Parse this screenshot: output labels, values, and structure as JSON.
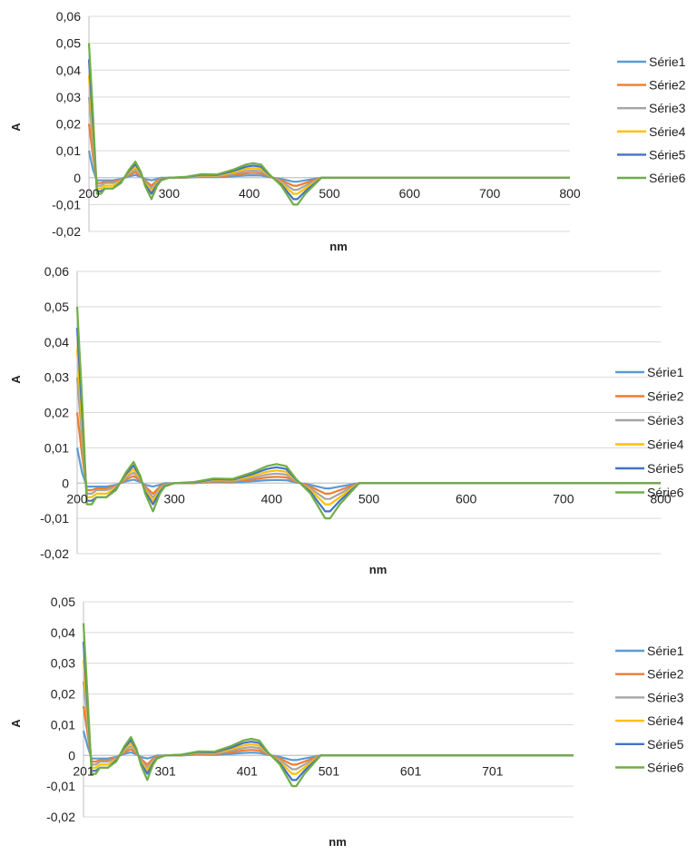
{
  "series_colors": [
    "#5b9bd5",
    "#ed7d31",
    "#a5a5a5",
    "#ffc000",
    "#4472c4",
    "#70ad47"
  ],
  "chart_data": [
    {
      "type": "line",
      "title": "",
      "xlabel": "nm",
      "ylabel": "A",
      "xlim": [
        200,
        800
      ],
      "ylim": [
        -0.02,
        0.06
      ],
      "x_ticks": [
        "200",
        "300",
        "400",
        "500",
        "600",
        "700",
        "800"
      ],
      "y_ticks": [
        "0,06",
        "0,05",
        "0,04",
        "0,03",
        "0,02",
        "0,01",
        "0",
        "-0,01",
        "-0,02"
      ],
      "y_tick_values": [
        0.06,
        0.05,
        0.04,
        0.03,
        0.02,
        0.01,
        0,
        -0.01,
        -0.02
      ],
      "grid": "horizontal",
      "legend": "right",
      "x": [
        200,
        205,
        210,
        215,
        220,
        230,
        240,
        250,
        258,
        265,
        270,
        278,
        285,
        290,
        300,
        320,
        340,
        360,
        380,
        395,
        405,
        415,
        425,
        440,
        455,
        460,
        470,
        490,
        500,
        550,
        600,
        650,
        700,
        750,
        800
      ],
      "series": [
        {
          "name": "Série1",
          "values": [
            0.01,
            0.003,
            -0.001,
            -0.001,
            -0.001,
            -0.001,
            -0.0005,
            0.0005,
            0.001,
            0.0003,
            -0.0005,
            -0.001,
            -0.0005,
            0,
            0,
            0,
            0.0003,
            0.0002,
            0.0005,
            0.0008,
            0.0009,
            0.0008,
            0.0002,
            -0.0005,
            -0.0015,
            -0.0015,
            -0.001,
            0,
            0,
            0,
            0,
            0,
            0,
            0,
            0
          ]
        },
        {
          "name": "Série2",
          "values": [
            0.02,
            0.008,
            -0.002,
            -0.002,
            -0.0015,
            -0.0015,
            -0.0008,
            0.001,
            0.002,
            0.0006,
            -0.001,
            -0.003,
            -0.001,
            -0.0003,
            0,
            0,
            0.0005,
            0.0004,
            0.001,
            0.0016,
            0.0018,
            0.0016,
            0.0004,
            -0.001,
            -0.003,
            -0.003,
            -0.002,
            0,
            0,
            0,
            0,
            0,
            0,
            0,
            0
          ]
        },
        {
          "name": "Série3",
          "values": [
            0.03,
            0.012,
            -0.003,
            -0.003,
            -0.002,
            -0.002,
            -0.001,
            0.0015,
            0.003,
            0.001,
            -0.0015,
            -0.004,
            -0.0015,
            -0.0005,
            0,
            0.0001,
            0.0007,
            0.0006,
            0.0015,
            0.0024,
            0.0027,
            0.0024,
            0.0006,
            -0.0015,
            -0.0045,
            -0.0045,
            -0.003,
            0,
            0,
            0,
            0,
            0,
            0,
            0,
            0
          ]
        },
        {
          "name": "Série4",
          "values": [
            0.038,
            0.016,
            -0.004,
            -0.004,
            -0.003,
            -0.003,
            -0.0013,
            0.002,
            0.004,
            0.0013,
            -0.002,
            -0.005,
            -0.002,
            -0.0007,
            0,
            0.0002,
            0.0009,
            0.0008,
            0.002,
            0.0032,
            0.0036,
            0.0032,
            0.0008,
            -0.002,
            -0.006,
            -0.006,
            -0.004,
            0,
            0,
            0,
            0,
            0,
            0,
            0,
            0
          ]
        },
        {
          "name": "Série5",
          "values": [
            0.044,
            0.02,
            -0.005,
            -0.005,
            -0.004,
            -0.004,
            -0.0016,
            0.0025,
            0.005,
            0.0017,
            -0.0025,
            -0.006,
            -0.0025,
            -0.0008,
            0,
            0.0002,
            0.0011,
            0.001,
            0.0025,
            0.004,
            0.0045,
            0.004,
            0.001,
            -0.0025,
            -0.008,
            -0.008,
            -0.005,
            0,
            0,
            0,
            0,
            0,
            0,
            0,
            0
          ]
        },
        {
          "name": "Série6",
          "values": [
            0.05,
            0.024,
            -0.006,
            -0.006,
            -0.004,
            -0.004,
            -0.002,
            0.003,
            0.006,
            0.002,
            -0.003,
            -0.008,
            -0.003,
            -0.001,
            0,
            0.0003,
            0.0013,
            0.0012,
            0.003,
            0.0048,
            0.0054,
            0.0048,
            0.0012,
            -0.003,
            -0.01,
            -0.01,
            -0.006,
            0,
            0,
            0,
            0,
            0,
            0,
            0,
            0
          ]
        }
      ]
    },
    {
      "type": "line",
      "title": "",
      "xlabel": "nm",
      "ylabel": "A",
      "xlim": [
        200,
        800
      ],
      "ylim": [
        -0.02,
        0.06
      ],
      "x_ticks": [
        "200",
        "300",
        "400",
        "500",
        "600",
        "700",
        "800"
      ],
      "y_ticks": [
        "0,06",
        "0,05",
        "0,04",
        "0,03",
        "0,02",
        "0,01",
        "0",
        "-0,01",
        "-0,02"
      ],
      "y_tick_values": [
        0.06,
        0.05,
        0.04,
        0.03,
        0.02,
        0.01,
        0,
        -0.01,
        -0.02
      ],
      "grid": "horizontal",
      "legend": "right",
      "x": [
        200,
        205,
        210,
        215,
        220,
        230,
        240,
        250,
        258,
        265,
        270,
        278,
        285,
        290,
        300,
        320,
        340,
        360,
        380,
        395,
        405,
        415,
        425,
        440,
        455,
        460,
        470,
        490,
        500,
        550,
        600,
        650,
        700,
        750,
        800
      ],
      "series": [
        {
          "name": "Série1",
          "values": [
            0.01,
            0.003,
            -0.001,
            -0.001,
            -0.001,
            -0.001,
            -0.0005,
            0.0005,
            0.001,
            0.0003,
            -0.0005,
            -0.001,
            -0.0005,
            0,
            0,
            0,
            0.0003,
            0.0002,
            0.0005,
            0.0008,
            0.0009,
            0.0008,
            0.0002,
            -0.0005,
            -0.0015,
            -0.0015,
            -0.001,
            0,
            0,
            0,
            0,
            0,
            0,
            0,
            0
          ]
        },
        {
          "name": "Série2",
          "values": [
            0.02,
            0.008,
            -0.002,
            -0.002,
            -0.0015,
            -0.0015,
            -0.0008,
            0.001,
            0.002,
            0.0006,
            -0.001,
            -0.003,
            -0.001,
            -0.0003,
            0,
            0,
            0.0005,
            0.0004,
            0.001,
            0.0016,
            0.0018,
            0.0016,
            0.0004,
            -0.001,
            -0.003,
            -0.003,
            -0.002,
            0,
            0,
            0,
            0,
            0,
            0,
            0,
            0
          ]
        },
        {
          "name": "Série3",
          "values": [
            0.03,
            0.012,
            -0.003,
            -0.003,
            -0.002,
            -0.002,
            -0.001,
            0.0015,
            0.003,
            0.001,
            -0.0015,
            -0.004,
            -0.0015,
            -0.0005,
            0,
            0.0001,
            0.0007,
            0.0006,
            0.0015,
            0.0024,
            0.0027,
            0.0024,
            0.0006,
            -0.0015,
            -0.0045,
            -0.0045,
            -0.003,
            0,
            0,
            0,
            0,
            0,
            0,
            0,
            0
          ]
        },
        {
          "name": "Série4",
          "values": [
            0.038,
            0.016,
            -0.004,
            -0.004,
            -0.003,
            -0.003,
            -0.0013,
            0.002,
            0.004,
            0.0013,
            -0.002,
            -0.005,
            -0.002,
            -0.0007,
            0,
            0.0002,
            0.0009,
            0.0008,
            0.002,
            0.0032,
            0.0036,
            0.0032,
            0.0008,
            -0.002,
            -0.006,
            -0.006,
            -0.004,
            0,
            0,
            0,
            0,
            0,
            0,
            0,
            0
          ]
        },
        {
          "name": "Série5",
          "values": [
            0.044,
            0.02,
            -0.005,
            -0.005,
            -0.004,
            -0.004,
            -0.0016,
            0.0025,
            0.005,
            0.0017,
            -0.0025,
            -0.006,
            -0.0025,
            -0.0008,
            0,
            0.0002,
            0.0011,
            0.001,
            0.0025,
            0.004,
            0.0045,
            0.004,
            0.001,
            -0.0025,
            -0.008,
            -0.008,
            -0.005,
            0,
            0,
            0,
            0,
            0,
            0,
            0,
            0
          ]
        },
        {
          "name": "Série6",
          "values": [
            0.05,
            0.024,
            -0.006,
            -0.006,
            -0.004,
            -0.004,
            -0.002,
            0.003,
            0.006,
            0.002,
            -0.003,
            -0.008,
            -0.003,
            -0.001,
            0,
            0.0003,
            0.0013,
            0.0012,
            0.003,
            0.0048,
            0.0054,
            0.0048,
            0.0012,
            -0.003,
            -0.01,
            -0.01,
            -0.006,
            0,
            0,
            0,
            0,
            0,
            0,
            0,
            0
          ]
        }
      ]
    },
    {
      "type": "line",
      "title": "",
      "xlabel": "nm",
      "ylabel": "A",
      "xlim": [
        201,
        800
      ],
      "ylim": [
        -0.02,
        0.05
      ],
      "x_ticks": [
        "201",
        "301",
        "401",
        "501",
        "601",
        "701"
      ],
      "y_ticks": [
        "0,05",
        "0,04",
        "0,03",
        "0,02",
        "0,01",
        "0",
        "-0,01",
        "-0,02"
      ],
      "y_tick_values": [
        0.05,
        0.04,
        0.03,
        0.02,
        0.01,
        0,
        -0.01,
        -0.02
      ],
      "grid": "horizontal",
      "legend": "right",
      "x": [
        201,
        206,
        211,
        216,
        221,
        231,
        241,
        251,
        259,
        266,
        271,
        279,
        286,
        291,
        301,
        321,
        341,
        361,
        381,
        396,
        406,
        416,
        426,
        441,
        456,
        461,
        471,
        491,
        501,
        551,
        601,
        651,
        701,
        751,
        800
      ],
      "series": [
        {
          "name": "Série1",
          "values": [
            0.008,
            0.003,
            -0.001,
            -0.001,
            -0.001,
            -0.001,
            -0.0005,
            0.0005,
            0.001,
            0.0003,
            -0.0005,
            -0.001,
            -0.0005,
            0,
            0,
            0,
            0.0003,
            0.0002,
            0.0005,
            0.0008,
            0.0009,
            0.0008,
            0.0002,
            -0.0005,
            -0.0015,
            -0.0015,
            -0.001,
            0,
            0,
            0,
            0,
            0,
            0,
            0,
            0
          ]
        },
        {
          "name": "Série2",
          "values": [
            0.016,
            0.007,
            -0.002,
            -0.002,
            -0.0015,
            -0.0015,
            -0.0008,
            0.001,
            0.002,
            0.0006,
            -0.001,
            -0.003,
            -0.001,
            -0.0003,
            0,
            0,
            0.0005,
            0.0004,
            0.001,
            0.0016,
            0.0018,
            0.0016,
            0.0004,
            -0.001,
            -0.003,
            -0.003,
            -0.002,
            0,
            0,
            0,
            0,
            0,
            0,
            0,
            0
          ]
        },
        {
          "name": "Série3",
          "values": [
            0.024,
            0.01,
            -0.003,
            -0.003,
            -0.002,
            -0.002,
            -0.001,
            0.0015,
            0.003,
            0.001,
            -0.0015,
            -0.004,
            -0.0015,
            -0.0005,
            0,
            0.0001,
            0.0007,
            0.0006,
            0.0015,
            0.0024,
            0.0027,
            0.0024,
            0.0006,
            -0.0015,
            -0.0045,
            -0.0045,
            -0.003,
            0,
            0,
            0,
            0,
            0,
            0,
            0,
            0
          ]
        },
        {
          "name": "Série4",
          "values": [
            0.031,
            0.013,
            -0.004,
            -0.004,
            -0.003,
            -0.003,
            -0.0013,
            0.002,
            0.004,
            0.0013,
            -0.002,
            -0.005,
            -0.002,
            -0.0007,
            0,
            0.0002,
            0.0009,
            0.0008,
            0.002,
            0.0032,
            0.0036,
            0.0032,
            0.0008,
            -0.002,
            -0.006,
            -0.006,
            -0.004,
            0,
            0,
            0,
            0,
            0,
            0,
            0,
            0
          ]
        },
        {
          "name": "Série5",
          "values": [
            0.037,
            0.016,
            -0.005,
            -0.005,
            -0.004,
            -0.004,
            -0.0016,
            0.0025,
            0.005,
            0.0017,
            -0.0025,
            -0.006,
            -0.0025,
            -0.0008,
            0,
            0.0002,
            0.0011,
            0.001,
            0.0025,
            0.004,
            0.0045,
            0.004,
            0.001,
            -0.0025,
            -0.008,
            -0.008,
            -0.005,
            0,
            0,
            0,
            0,
            0,
            0,
            0,
            0
          ]
        },
        {
          "name": "Série6",
          "values": [
            0.043,
            0.019,
            -0.006,
            -0.006,
            -0.004,
            -0.004,
            -0.002,
            0.003,
            0.006,
            0.002,
            -0.003,
            -0.008,
            -0.003,
            -0.001,
            0,
            0.0003,
            0.0013,
            0.0012,
            0.003,
            0.0048,
            0.0054,
            0.0048,
            0.0012,
            -0.003,
            -0.01,
            -0.01,
            -0.006,
            0,
            0,
            0,
            0,
            0,
            0,
            0,
            0
          ]
        }
      ]
    }
  ]
}
